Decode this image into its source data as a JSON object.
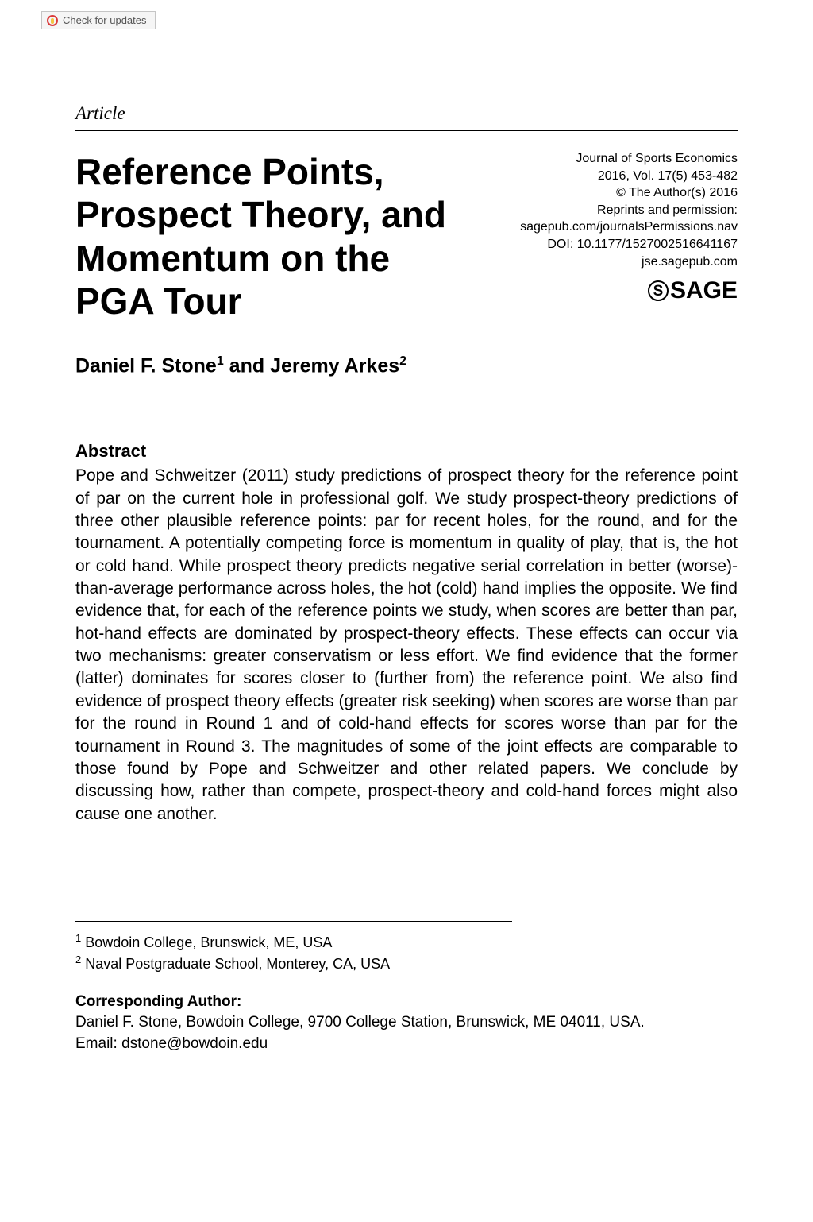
{
  "updateBadge": {
    "label": "Check for updates"
  },
  "articleType": "Article",
  "title": "Reference Points, Prospect Theory, and Momentum on the PGA Tour",
  "journalMeta": {
    "journal": "Journal of Sports Economics",
    "issue": "2016, Vol. 17(5) 453-482",
    "copyright": "© The Author(s) 2016",
    "reprints": "Reprints and permission:",
    "permissionsUrl": "sagepub.com/journalsPermissions.nav",
    "doi": "DOI: 10.1177/1527002516641167",
    "site": "jse.sagepub.com",
    "publisher": "SAGE"
  },
  "authors": {
    "a1": "Daniel F. Stone",
    "sup1": "1",
    "joiner": " and ",
    "a2": "Jeremy Arkes",
    "sup2": "2"
  },
  "abstract": {
    "heading": "Abstract",
    "body": "Pope and Schweitzer (2011) study predictions of prospect theory for the reference point of par on the current hole in professional golf. We study prospect-theory predictions of three other plausible reference points: par for recent holes, for the round, and for the tournament. A potentially competing force is momentum in quality of play, that is, the hot or cold hand. While prospect theory predicts negative serial correlation in better (worse)-than-average performance across holes, the hot (cold) hand implies the opposite. We find evidence that, for each of the reference points we study, when scores are better than par, hot-hand effects are dominated by prospect-theory effects. These effects can occur via two mechanisms: greater conservatism or less effort. We find evidence that the former (latter) dominates for scores closer to (further from) the reference point. We also find evidence of prospect theory effects (greater risk seeking) when scores are worse than par for the round in Round 1 and of cold-hand effects for scores worse than par for the tournament in Round 3. The magnitudes of some of the joint effects are comparable to those found by Pope and Schweitzer and other related papers. We conclude by discussing how, rather than compete, prospect-theory and cold-hand forces might also cause one another."
  },
  "affiliations": {
    "a1sup": "1",
    "a1": " Bowdoin College, Brunswick, ME, USA",
    "a2sup": "2",
    "a2": " Naval Postgraduate School, Monterey, CA, USA"
  },
  "corresponding": {
    "heading": "Corresponding Author:",
    "line1": "Daniel F. Stone, Bowdoin College, 9700 College Station, Brunswick, ME 04011, USA.",
    "line2": "Email: dstone@bowdoin.edu"
  }
}
